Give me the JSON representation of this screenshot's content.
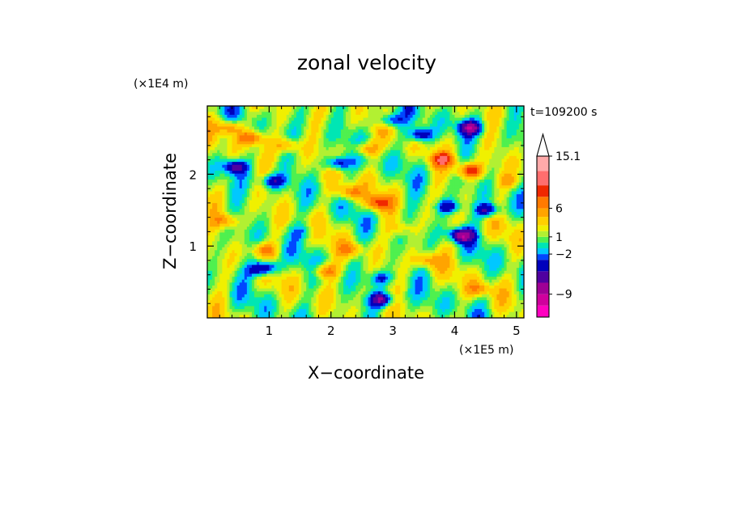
{
  "chart_data": {
    "type": "heatmap",
    "title": "zonal velocity",
    "xlabel": "X−coordinate",
    "ylabel": "Z−coordinate",
    "x_unit": "(×1E5 m)",
    "y_unit": "(×1E4 m)",
    "time_label": "t=109200 s",
    "xlim": [
      0,
      5.12
    ],
    "ylim": [
      0,
      2.95
    ],
    "x_ticks": [
      1,
      2,
      3,
      4,
      5
    ],
    "x_tick_labels": [
      "1",
      "2",
      "3",
      "4",
      "5"
    ],
    "y_ticks": [
      1,
      2
    ],
    "y_tick_labels": [
      "1",
      "2"
    ],
    "grid": false,
    "colorbar": {
      "levels": [
        -13,
        -11,
        -9,
        -7,
        -5,
        -3,
        -2,
        -1,
        0,
        1,
        2,
        3,
        4.5,
        6,
        8,
        10,
        12.5,
        15.1
      ],
      "labels": [
        {
          "value": 15.1,
          "text": "15.1"
        },
        {
          "value": 6,
          "text": "6"
        },
        {
          "value": 1,
          "text": "1"
        },
        {
          "value": -2,
          "text": "−2"
        },
        {
          "value": -9,
          "text": "−9"
        }
      ],
      "colors": [
        "#ff00c0",
        "#d0009d",
        "#9f0095",
        "#5000a0",
        "#0000bc",
        "#0047ff",
        "#00c8ff",
        "#00e6b4",
        "#4ff04f",
        "#b2f032",
        "#f0f000",
        "#ffd000",
        "#ffa400",
        "#ff7a00",
        "#f02800",
        "#ff6e6e",
        "#ffaaaa",
        "#ffd0d0"
      ],
      "extend_top": true
    },
    "field_features": [
      {
        "x": 0.7,
        "z": 2.5,
        "value": 7
      },
      {
        "x": 1.3,
        "z": 2.4,
        "value": 5
      },
      {
        "x": 0.35,
        "z": 2.65,
        "value": 6
      },
      {
        "x": 0.45,
        "z": 2.1,
        "value": -7
      },
      {
        "x": 1.05,
        "z": 1.9,
        "value": -6
      },
      {
        "x": 2.1,
        "z": 2.15,
        "value": -7
      },
      {
        "x": 2.55,
        "z": 2.35,
        "value": 6
      },
      {
        "x": 2.3,
        "z": 1.75,
        "value": 6
      },
      {
        "x": 2.75,
        "z": 1.6,
        "value": 7
      },
      {
        "x": 2.95,
        "z": 2.75,
        "value": -6
      },
      {
        "x": 3.45,
        "z": 2.55,
        "value": -7
      },
      {
        "x": 4.25,
        "z": 2.65,
        "value": -8
      },
      {
        "x": 4.25,
        "z": 2.05,
        "value": 9
      },
      {
        "x": 3.8,
        "z": 2.2,
        "value": 7
      },
      {
        "x": 4.1,
        "z": 1.15,
        "value": -9
      },
      {
        "x": 4.55,
        "z": 1.5,
        "value": -7
      },
      {
        "x": 3.9,
        "z": 1.55,
        "value": -6
      },
      {
        "x": 0.3,
        "z": 1.35,
        "value": 5
      },
      {
        "x": 0.9,
        "z": 0.95,
        "value": 5
      },
      {
        "x": 1.9,
        "z": 0.65,
        "value": 6
      },
      {
        "x": 2.35,
        "z": 0.95,
        "value": 4
      },
      {
        "x": 1.55,
        "z": 1.2,
        "value": -3
      },
      {
        "x": 0.8,
        "z": 0.65,
        "value": -3
      },
      {
        "x": 2.8,
        "z": 0.55,
        "value": -4
      },
      {
        "x": 3.55,
        "z": 0.8,
        "value": 5
      },
      {
        "x": 4.4,
        "z": 0.4,
        "value": 4
      },
      {
        "x": 4.85,
        "z": 1.9,
        "value": 3
      },
      {
        "x": 3.15,
        "z": 1.25,
        "value": 3
      },
      {
        "x": 0.95,
        "z": 0.7,
        "value": -8
      },
      {
        "x": 2.82,
        "z": 0.25,
        "value": -8
      }
    ]
  }
}
